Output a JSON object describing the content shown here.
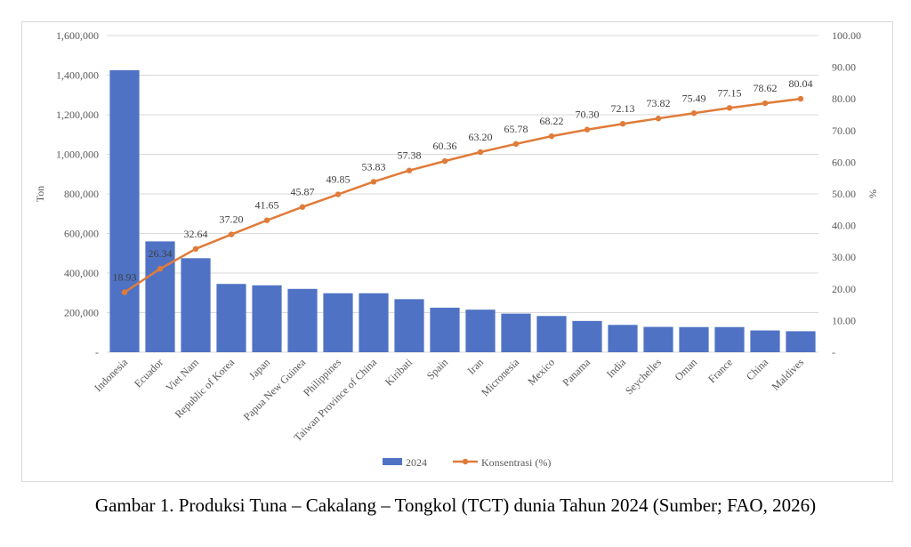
{
  "caption": "Gambar 1. Produksi Tuna – Cakalang – Tongkol (TCT) dunia Tahun 2024 (Sumber; FAO, 2026)",
  "chart_data": {
    "type": "bar",
    "title": "",
    "categories": [
      "Indonesia",
      "Ecuador",
      "Viet Nam",
      "Republic of Korea",
      "Japan",
      "Papua New Guinea",
      "Philippines",
      "Taiwan Province of China",
      "Kiribati",
      "Spain",
      "Iran",
      "Micronesia",
      "Mexico",
      "Panama",
      "India",
      "Seychelles",
      "Oman",
      "France",
      "China",
      "Maldives"
    ],
    "series": [
      {
        "name": "2024",
        "type": "bar",
        "axis": "left",
        "color": "#4f72c4",
        "values": [
          1425000,
          560000,
          475000,
          345000,
          338000,
          320000,
          298000,
          298000,
          268000,
          225000,
          215000,
          195000,
          183000,
          158000,
          138000,
          128000,
          127000,
          127000,
          110000,
          106000
        ]
      },
      {
        "name": "Konsentrasi (%)",
        "type": "line",
        "axis": "right",
        "color": "#e07b39",
        "values": [
          18.93,
          26.34,
          32.64,
          37.2,
          41.65,
          45.87,
          49.85,
          53.83,
          57.38,
          60.36,
          63.2,
          65.78,
          68.22,
          70.3,
          72.13,
          73.82,
          75.49,
          77.15,
          78.62,
          80.04
        ],
        "labels": [
          "18.93",
          "26.34",
          "32.64",
          "37.20",
          "41.65",
          "45.87",
          "49.85",
          "53.83",
          "57.38",
          "60.36",
          "63.20",
          "65.78",
          "68.22",
          "70.30",
          "72.13",
          "73.82",
          "75.49",
          "77.15",
          "78.62",
          "80.04"
        ]
      }
    ],
    "ylabel": "Ton",
    "y2label": "%",
    "ylim": [
      0,
      1600000
    ],
    "y2lim": [
      0,
      100
    ],
    "yticks": [
      "-",
      "200,000",
      "400,000",
      "600,000",
      "800,000",
      "1,000,000",
      "1,200,000",
      "1,400,000",
      "1,600,000"
    ],
    "y2ticks": [
      "-",
      "10.00",
      "20.00",
      "30.00",
      "40.00",
      "50.00",
      "60.00",
      "70.00",
      "80.00",
      "90.00",
      "100.00"
    ],
    "grid": true,
    "legend": "bottom-center"
  }
}
